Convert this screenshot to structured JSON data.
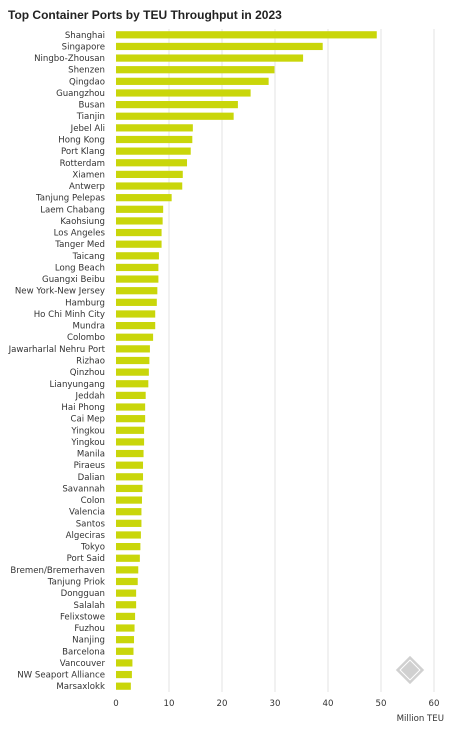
{
  "chart_data": {
    "type": "bar",
    "orientation": "horizontal",
    "title": "Top Container Ports by TEU Throughput in 2023",
    "xlabel": "Million TEU",
    "ylabel": "",
    "xlim": [
      0,
      60
    ],
    "xticks": [
      "0",
      "10",
      "20",
      "30",
      "40",
      "50",
      "60"
    ],
    "grid": true,
    "legend": "none",
    "bar_color": "#c9d60a",
    "categories": [
      "Shanghai",
      "Singapore",
      "Ningbo-Zhousan",
      "Shenzen",
      "Qingdao",
      "Guangzhou",
      "Busan",
      "Tianjin",
      "Jebel Ali",
      "Hong Kong",
      "Port Klang",
      "Rotterdam",
      "Xiamen",
      "Antwerp",
      "Tanjung Pelepas",
      "Laem Chabang",
      "Kaohsiung",
      "Los Angeles",
      "Tanger Med",
      "Taicang",
      "Long Beach",
      "Guangxi Beibu",
      "New York-New Jersey",
      "Hamburg",
      "Ho Chi Minh City",
      "Mundra",
      "Colombo",
      "Jawarharlal Nehru Port",
      "Rizhao",
      "Qinzhou",
      "Lianyungang",
      "Jeddah",
      "Hai Phong",
      "Cai Mep",
      "Yingkou",
      "Yingkou",
      "Manila",
      "Piraeus",
      "Dalian",
      "Savannah",
      "Colon",
      "Valencia",
      "Santos",
      "Algeciras",
      "Tokyo",
      "Port Said",
      "Bremen/Bremerhaven",
      "Tanjung Priok",
      "Dongguan",
      "Salalah",
      "Felixstowe",
      "Fuzhou",
      "Nanjing",
      "Barcelona",
      "Vancouver",
      "NW Seaport Alliance",
      "Marsaxlokk"
    ],
    "values": [
      49.2,
      39.0,
      35.3,
      29.9,
      28.8,
      25.4,
      23.0,
      22.2,
      14.5,
      14.4,
      14.1,
      13.4,
      12.6,
      12.5,
      10.5,
      8.9,
      8.8,
      8.6,
      8.6,
      8.1,
      8.0,
      8.0,
      7.8,
      7.7,
      7.4,
      7.4,
      7.0,
      6.4,
      6.3,
      6.2,
      6.1,
      5.6,
      5.5,
      5.5,
      5.3,
      5.3,
      5.2,
      5.1,
      5.1,
      5.0,
      4.9,
      4.8,
      4.8,
      4.7,
      4.6,
      4.5,
      4.2,
      4.1,
      3.8,
      3.8,
      3.6,
      3.5,
      3.4,
      3.3,
      3.1,
      3.0,
      2.8
    ]
  }
}
